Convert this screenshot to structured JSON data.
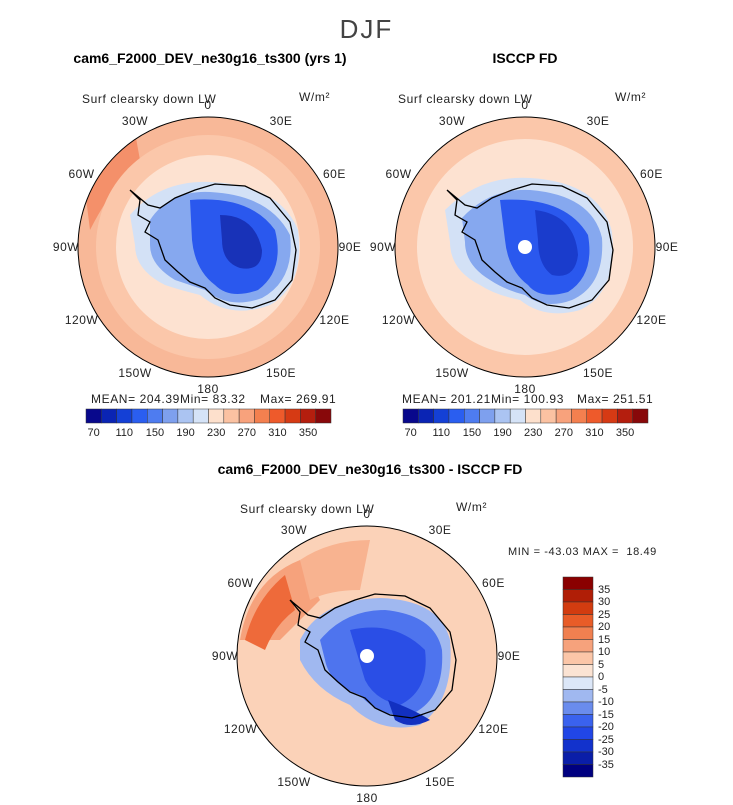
{
  "figure": {
    "title": "DJF"
  },
  "panels": [
    {
      "id": "model",
      "title": "cam6_F2000_DEV_ne30g16_ts300 (yrs 1)",
      "var_label": "Surf clearsky down LW",
      "units": "W/m²",
      "stats": {
        "mean": "MEAN= 204.39",
        "min": "Min= 83.32",
        "max": "Max= 269.91"
      }
    },
    {
      "id": "obs",
      "title": "ISCCP FD",
      "var_label": "Surf clearsky down LW",
      "units": "W/m²",
      "stats": {
        "mean": "MEAN= 201.21",
        "min": "Min= 100.93",
        "max": "Max= 251.51"
      }
    },
    {
      "id": "diff",
      "title": "cam6_F2000_DEV_ne30g16_ts300 - ISCCP FD",
      "var_label": "Surf clearsky down LW",
      "units": "W/m²",
      "stats": {
        "minmax": "MIN = -43.03 MAX =  18.49"
      }
    }
  ],
  "lon_labels": [
    "0",
    "30E",
    "60E",
    "90E",
    "120E",
    "150E",
    "180",
    "150W",
    "120W",
    "90W",
    "60W",
    "30W"
  ],
  "colors": {
    "abs_scale": [
      "#08088c",
      "#0a24b4",
      "#1440d6",
      "#2a5ef0",
      "#4e7cf0",
      "#7ea0ee",
      "#abc4f2",
      "#d5e3f7",
      "#fde0cc",
      "#fbc2a2",
      "#f8a27c",
      "#f4804f",
      "#ee5a2b",
      "#d63a14",
      "#b41e0e",
      "#88080a"
    ],
    "diff_scale": [
      "#000080",
      "#0a1ea8",
      "#1232cc",
      "#2146e6",
      "#3a62ee",
      "#6a8ced",
      "#a0b8f0",
      "#dce7f8",
      "#fbe3d3",
      "#fbc6a8",
      "#f6a27c",
      "#f08050",
      "#e85c28",
      "#d23c10",
      "#b01e06",
      "#8a0000"
    ]
  },
  "chart_data": [
    {
      "type": "heatmap",
      "title": "cam6_F2000_DEV_ne30g16_ts300 (yrs 1)",
      "projection": "south polar stereographic",
      "season": "DJF",
      "colorbar_ticks": [
        70,
        110,
        150,
        190,
        230,
        270,
        310,
        350
      ],
      "mean": 204.39,
      "min": 83.32,
      "max": 269.91,
      "units": "W/m²"
    },
    {
      "type": "heatmap",
      "title": "ISCCP FD",
      "projection": "south polar stereographic",
      "season": "DJF",
      "colorbar_ticks": [
        70,
        110,
        150,
        190,
        230,
        270,
        310,
        350
      ],
      "mean": 201.21,
      "min": 100.93,
      "max": 251.51,
      "units": "W/m²"
    },
    {
      "type": "heatmap",
      "title": "cam6_F2000_DEV_ne30g16_ts300 - ISCCP FD",
      "projection": "south polar stereographic",
      "season": "DJF",
      "colorbar_ticks": [
        35,
        30,
        25,
        20,
        15,
        10,
        5,
        0,
        -5,
        -10,
        -15,
        -20,
        -25,
        -30,
        -35
      ],
      "min": -43.03,
      "max": 18.49,
      "units": "W/m²"
    }
  ]
}
